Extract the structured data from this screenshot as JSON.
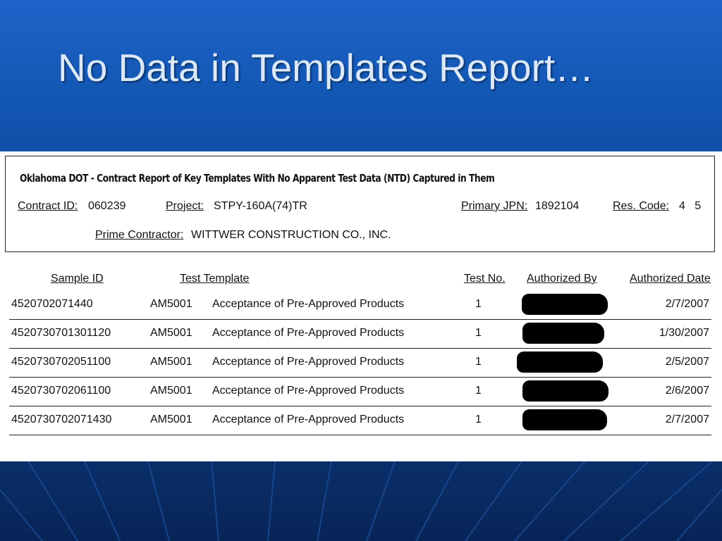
{
  "slide": {
    "title": "No Data in Templates Report…",
    "colors": {
      "title_bg": "#1f63c9",
      "footer_bg": "#0b2f6a",
      "title_text": "#dbe9f8"
    }
  },
  "report": {
    "title": "Oklahoma DOT -   Contract Report of  Key Templates With No Apparent Test Data (NTD) Captured in Them",
    "contract_id_label": "Contract ID:",
    "contract_id": "060239",
    "project_label": "Project:",
    "project": "STPY-160A(74)TR",
    "primary_jpn_label": "Primary JPN:",
    "primary_jpn": "1892104",
    "res_code_label": "Res. Code:",
    "res_code": "4   5",
    "prime_contractor_label": "Prime Contractor:",
    "prime_contractor": "WITTWER CONSTRUCTION CO., INC."
  },
  "table": {
    "headers": {
      "sample_id": "Sample ID",
      "test_template": "Test Template",
      "test_no": "Test No.",
      "authorized_by": "Authorized By",
      "authorized_date": "Authorized Date"
    },
    "rows": [
      {
        "sample_id": "4520702071440",
        "template_code": "AM5001",
        "template_name": "Acceptance of Pre-Approved Products",
        "test_no": "1",
        "authorized_date": "2/7/2007"
      },
      {
        "sample_id": "4520730701301120",
        "template_code": "AM5001",
        "template_name": "Acceptance of Pre-Approved Products",
        "test_no": "1",
        "authorized_date": "1/30/2007"
      },
      {
        "sample_id": "4520730702051100",
        "template_code": "AM5001",
        "template_name": "Acceptance of Pre-Approved Products",
        "test_no": "1",
        "authorized_date": "2/5/2007"
      },
      {
        "sample_id": "4520730702061100",
        "template_code": "AM5001",
        "template_name": "Acceptance of Pre-Approved Products",
        "test_no": "1",
        "authorized_date": "2/6/2007"
      },
      {
        "sample_id": "4520730702071430",
        "template_code": "AM5001",
        "template_name": "Acceptance of Pre-Approved Products",
        "test_no": "1",
        "authorized_date": "2/7/2007"
      }
    ]
  }
}
